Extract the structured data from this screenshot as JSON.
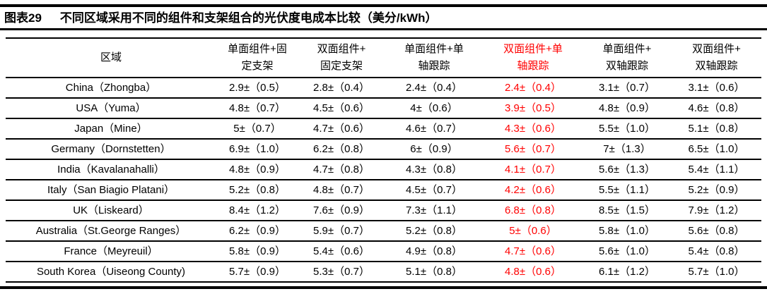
{
  "title": {
    "prefix": "图表29",
    "text": "不同区域采用不同的组件和支架组合的光伏度电成本比较（美分/kWh）"
  },
  "colors": {
    "text": "#000000",
    "highlight": "#ff0000",
    "rule": "#000000",
    "background": "#ffffff"
  },
  "table": {
    "unit": "美分/kWh",
    "columns": [
      {
        "id": "region",
        "line1": "区域",
        "line2": "",
        "highlight": false
      },
      {
        "id": "mono-fixed",
        "line1": "单面组件+固",
        "line2": "定支架",
        "highlight": false
      },
      {
        "id": "bi-fixed",
        "line1": "双面组件+",
        "line2": "固定支架",
        "highlight": false
      },
      {
        "id": "mono-1axis",
        "line1": "单面组件+单",
        "line2": "轴跟踪",
        "highlight": false
      },
      {
        "id": "bi-1axis",
        "line1": "双面组件+单",
        "line2": "轴跟踪",
        "highlight": true
      },
      {
        "id": "mono-2axis",
        "line1": "单面组件+",
        "line2": "双轴跟踪",
        "highlight": false
      },
      {
        "id": "bi-2axis",
        "line1": "双面组件+",
        "line2": "双轴跟踪",
        "highlight": false
      }
    ],
    "rows": [
      {
        "region": "China（Zhongba）",
        "values": [
          "2.9±（0.5）",
          "2.8±（0.4）",
          "2.4±（0.4）",
          "2.4±（0.4）",
          "3.1±（0.7）",
          "3.1±（0.6）"
        ]
      },
      {
        "region": "USA（Yuma）",
        "values": [
          "4.8±（0.7）",
          "4.5±（0.6）",
          "4±（0.6）",
          "3.9±（0.5）",
          "4.8±（0.9）",
          "4.6±（0.8）"
        ]
      },
      {
        "region": "Japan（Mine）",
        "values": [
          "5±（0.7）",
          "4.7±（0.6）",
          "4.6±（0.7）",
          "4.3±（0.6）",
          "5.5±（1.0）",
          "5.1±（0.8）"
        ]
      },
      {
        "region": "Germany（Dornstetten）",
        "values": [
          "6.9±（1.0）",
          "6.2±（0.8）",
          "6±（0.9）",
          "5.6±（0.7）",
          "7±（1.3）",
          "6.5±（1.0）"
        ]
      },
      {
        "region": "India（Kavalanahalli）",
        "values": [
          "4.8±（0.9）",
          "4.7±（0.8）",
          "4.3±（0.8）",
          "4.1±（0.7）",
          "5.6±（1.3）",
          "5.4±（1.1）"
        ]
      },
      {
        "region": "Italy（San Biagio Platani）",
        "values": [
          "5.2±（0.8）",
          "4.8±（0.7）",
          "4.5±（0.7）",
          "4.2±（0.6）",
          "5.5±（1.1）",
          "5.2±（0.9）"
        ]
      },
      {
        "region": "UK（Liskeard）",
        "values": [
          "8.4±（1.2）",
          "7.6±（0.9）",
          "7.3±（1.1）",
          "6.8±（0.8）",
          "8.5±（1.5）",
          "7.9±（1.2）"
        ]
      },
      {
        "region": "Australia（St.George Ranges）",
        "values": [
          "6.2±（0.9）",
          "5.9±（0.7）",
          "5.2±（0.8）",
          "5±（0.6）",
          "5.8±（1.0）",
          "5.6±（0.8）"
        ]
      },
      {
        "region": "France（Meyreuil）",
        "values": [
          "5.8±（0.9）",
          "5.4±（0.6）",
          "4.9±（0.8）",
          "4.7±（0.6）",
          "5.6±（1.0）",
          "5.4±（0.8）"
        ]
      },
      {
        "region": "South Korea（Uiseong County)",
        "values": [
          "5.7±（0.9）",
          "5.3±（0.7）",
          "5.1±（0.8）",
          "4.8±（0.6）",
          "6.1±（1.2）",
          "5.7±（1.0）"
        ]
      }
    ]
  }
}
